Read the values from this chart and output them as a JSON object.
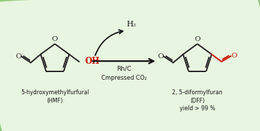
{
  "bg_color": "#e8f5e0",
  "bg_gradient_top": "#d4edc4",
  "border_color": "#90c878",
  "text_color": "#1a1a1a",
  "red_color": "#cc1100",
  "bond_color": "#222222",
  "arrow_color": "#111111",
  "label_hmf_1": "5-hydroxymethylfurfural",
  "label_hmf_2": "(HMF)",
  "label_dff_1": "2, 5-diformylfuran",
  "label_dff_2": "(DFF)",
  "label_dff_3": "yield > 99 %",
  "label_catalyst_1": "Rh/C",
  "label_catalyst_2": "Cmpressed CO₂",
  "label_h2": "H₂",
  "figsize": [
    3.75,
    1.89
  ],
  "dpi": 100
}
